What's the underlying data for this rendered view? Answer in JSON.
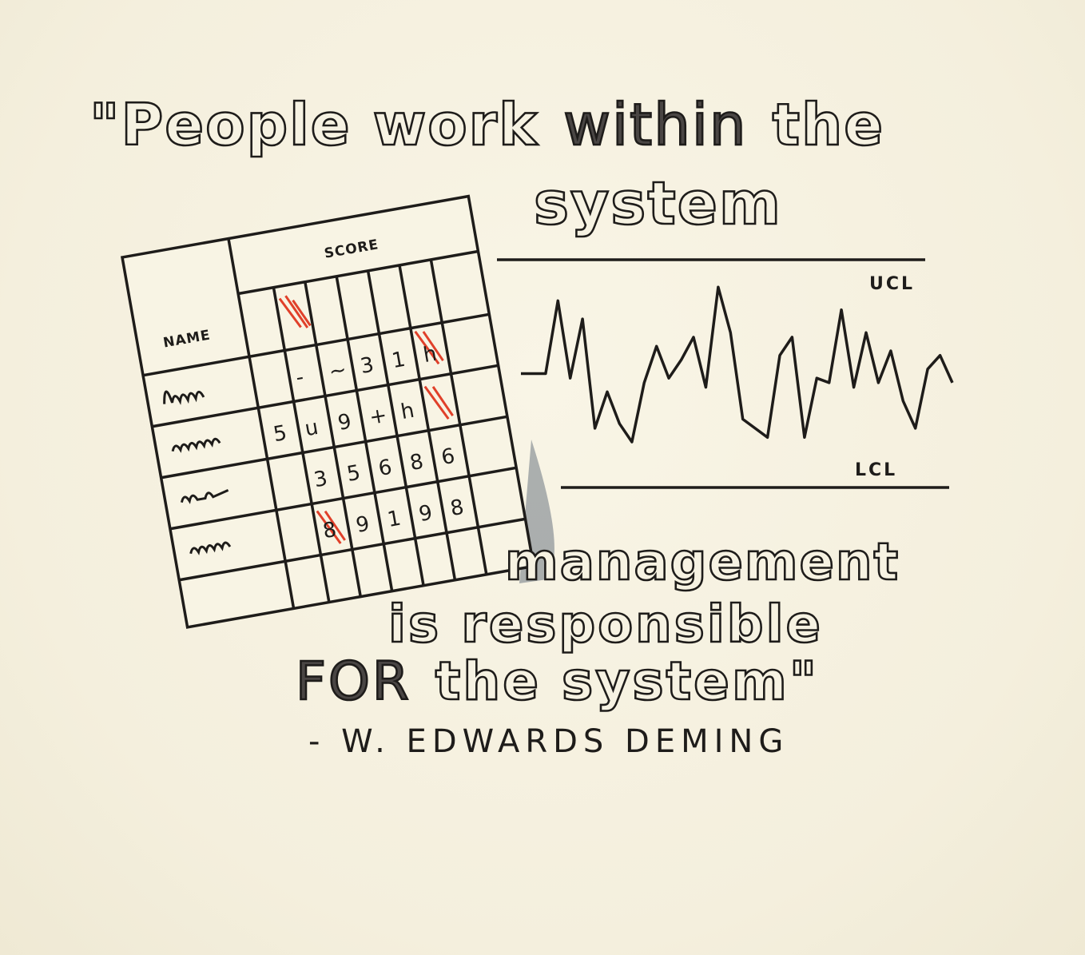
{
  "quote": {
    "line1_pre": "\"People work ",
    "line1_hl": "within",
    "line1_post": " the",
    "line2": "system",
    "line3": "management",
    "line4": "is responsible",
    "line5_hl": "FOR",
    "line5_post": " the system\""
  },
  "attribution": "- W. EDWARDS  DEMING",
  "sheet": {
    "name_header": "NAME",
    "score_header": "SCORE",
    "rows": [
      {
        "name": "lm",
        "scores": [
          "-",
          "▲",
          "~",
          "3",
          "1",
          "h"
        ]
      },
      {
        "name": "mm",
        "scores": [
          "5",
          "u",
          "9",
          "+",
          "h",
          ""
        ]
      },
      {
        "name": "w~",
        "scores": [
          "",
          "3",
          "5",
          "6",
          "8",
          "6"
        ]
      },
      {
        "name": "mm",
        "scores": [
          "",
          "8",
          "9",
          "1",
          "9",
          "8"
        ]
      }
    ]
  },
  "control_chart": {
    "ucl_label": "UCL",
    "lcl_label": "LCL",
    "values": [
      0.5,
      0.5,
      0.5,
      0.82,
      0.48,
      0.74,
      0.26,
      0.42,
      0.28,
      0.2,
      0.46,
      0.62,
      0.48,
      0.56,
      0.66,
      0.44,
      0.88,
      0.68,
      0.3,
      0.26,
      0.22,
      0.58,
      0.66,
      0.22,
      0.48,
      0.46,
      0.78,
      0.44,
      0.68,
      0.46,
      0.6,
      0.38,
      0.26,
      0.52,
      0.58,
      0.46
    ]
  },
  "colors": {
    "ink": "#1e1c1a",
    "highlight": "#e0402a",
    "paper": "#f6f2e2",
    "shadow": "#5e6a78"
  }
}
